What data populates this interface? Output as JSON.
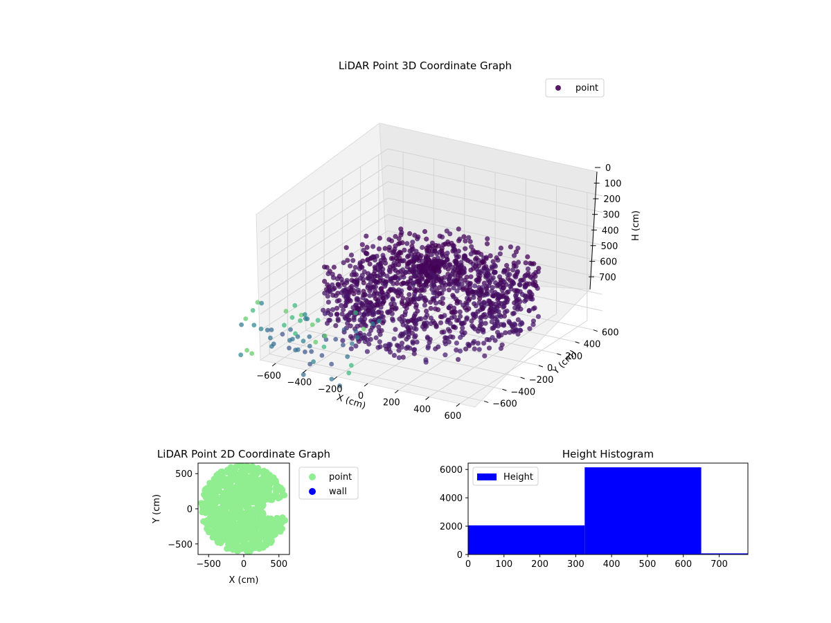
{
  "chart_data": [
    {
      "type": "scatter",
      "projection": "3d",
      "title": "LiDAR Point 3D Coordinate Graph",
      "xlabel": "X (cm)",
      "ylabel": "Y (cm)",
      "zlabel": "H (cm)",
      "xlim": [
        -700,
        700
      ],
      "ylim": [
        -700,
        700
      ],
      "zlim": [
        0,
        780
      ],
      "z_axis_inverted": true,
      "xticks": [
        "−600",
        "−400",
        "−200",
        "0",
        "200",
        "400",
        "600"
      ],
      "yticks": [
        "−600",
        "−400",
        "−200",
        "0",
        "200",
        "400",
        "600"
      ],
      "zticks": [
        "0",
        "100",
        "200",
        "300",
        "400",
        "500",
        "600",
        "700"
      ],
      "legend": [
        "point"
      ],
      "legend_position": "top-right",
      "colormap": "viridis",
      "description": "Ring of points around the origin, radius roughly 350–600 cm, heights concentrated around 350–650 cm; a sparse cloud of points toward negative X / negative Y.",
      "series": [
        {
          "name": "point",
          "color": "#440154"
        }
      ]
    },
    {
      "type": "scatter",
      "title": "LiDAR Point 2D Coordinate Graph",
      "xlabel": "X (cm)",
      "ylabel": "Y (cm)",
      "xlim": [
        -650,
        650
      ],
      "ylim": [
        -650,
        650
      ],
      "xticks": [
        "−500",
        "0",
        "500"
      ],
      "yticks": [
        "500",
        "0",
        "−500"
      ],
      "legend": [
        "point",
        "wall"
      ],
      "legend_position": "right",
      "series": [
        {
          "name": "point",
          "color": "#90ee90"
        },
        {
          "name": "wall",
          "color": "#0000ff"
        }
      ]
    },
    {
      "type": "bar",
      "title": "Height Histogram",
      "bins": [
        [
          0,
          325
        ],
        [
          325,
          650
        ],
        [
          650,
          780
        ]
      ],
      "values": [
        2050,
        6150,
        80
      ],
      "xlim": [
        0,
        780
      ],
      "ylim": [
        0,
        6450
      ],
      "xticks": [
        "0",
        "100",
        "200",
        "300",
        "400",
        "500",
        "600",
        "700"
      ],
      "yticks": [
        "0",
        "2000",
        "4000",
        "6000"
      ],
      "legend": [
        "Height"
      ],
      "legend_position": "top-left",
      "series": [
        {
          "name": "Height",
          "color": "#0000ff"
        }
      ]
    }
  ]
}
